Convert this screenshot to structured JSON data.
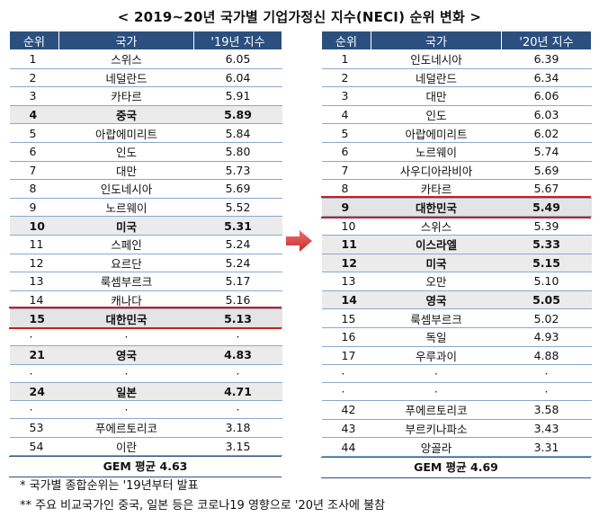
{
  "title": "< 2019~20년 국가별 기업가정신 지수(NECI) 순위 변화 >",
  "left": {
    "headers": [
      "순위",
      "국가",
      "'19년 지수"
    ],
    "rows": [
      {
        "rank": "1",
        "country": "스위스",
        "value": "6.05",
        "style": ""
      },
      {
        "rank": "2",
        "country": "네덜란드",
        "value": "6.04",
        "style": ""
      },
      {
        "rank": "3",
        "country": "카타르",
        "value": "5.91",
        "style": ""
      },
      {
        "rank": "4",
        "country": "중국",
        "value": "5.89",
        "style": "bold"
      },
      {
        "rank": "5",
        "country": "아랍에미리트",
        "value": "5.84",
        "style": ""
      },
      {
        "rank": "6",
        "country": "인도",
        "value": "5.80",
        "style": ""
      },
      {
        "rank": "7",
        "country": "대만",
        "value": "5.73",
        "style": ""
      },
      {
        "rank": "8",
        "country": "인도네시아",
        "value": "5.69",
        "style": ""
      },
      {
        "rank": "9",
        "country": "노르웨이",
        "value": "5.52",
        "style": ""
      },
      {
        "rank": "10",
        "country": "미국",
        "value": "5.31",
        "style": "bold"
      },
      {
        "rank": "11",
        "country": "스페인",
        "value": "5.24",
        "style": ""
      },
      {
        "rank": "12",
        "country": "요르단",
        "value": "5.24",
        "style": ""
      },
      {
        "rank": "13",
        "country": "룩셈부르크",
        "value": "5.17",
        "style": ""
      },
      {
        "rank": "14",
        "country": "캐나다",
        "value": "5.16",
        "style": ""
      },
      {
        "rank": "15",
        "country": "대한민국",
        "value": "5.13",
        "style": "korea"
      },
      {
        "rank": "·",
        "country": "·",
        "value": "·",
        "style": "dots"
      },
      {
        "rank": "21",
        "country": "영국",
        "value": "4.83",
        "style": "bold"
      },
      {
        "rank": "·",
        "country": "·",
        "value": "·",
        "style": "dots"
      },
      {
        "rank": "24",
        "country": "일본",
        "value": "4.71",
        "style": "bold"
      },
      {
        "rank": "·",
        "country": "·",
        "value": "·",
        "style": "dots"
      },
      {
        "rank": "53",
        "country": "푸에르토리코",
        "value": "3.18",
        "style": ""
      },
      {
        "rank": "54",
        "country": "이란",
        "value": "3.15",
        "style": ""
      }
    ],
    "gem": "GEM 평균 4.63"
  },
  "right": {
    "headers": [
      "순위",
      "국가",
      "'20년 지수"
    ],
    "rows": [
      {
        "rank": "1",
        "country": "인도네시아",
        "value": "6.39",
        "style": ""
      },
      {
        "rank": "2",
        "country": "네덜란드",
        "value": "6.34",
        "style": ""
      },
      {
        "rank": "3",
        "country": "대만",
        "value": "6.06",
        "style": ""
      },
      {
        "rank": "4",
        "country": "인도",
        "value": "6.03",
        "style": ""
      },
      {
        "rank": "5",
        "country": "아랍에미리트",
        "value": "6.02",
        "style": ""
      },
      {
        "rank": "6",
        "country": "노르웨이",
        "value": "5.74",
        "style": ""
      },
      {
        "rank": "7",
        "country": "사우디아라비아",
        "value": "5.69",
        "style": ""
      },
      {
        "rank": "8",
        "country": "카타르",
        "value": "5.67",
        "style": ""
      },
      {
        "rank": "9",
        "country": "대한민국",
        "value": "5.49",
        "style": "korea"
      },
      {
        "rank": "10",
        "country": "스위스",
        "value": "5.39",
        "style": ""
      },
      {
        "rank": "11",
        "country": "이스라엘",
        "value": "5.33",
        "style": "bold"
      },
      {
        "rank": "12",
        "country": "미국",
        "value": "5.15",
        "style": "bold"
      },
      {
        "rank": "13",
        "country": "오만",
        "value": "5.10",
        "style": ""
      },
      {
        "rank": "14",
        "country": "영국",
        "value": "5.05",
        "style": "bold"
      },
      {
        "rank": "15",
        "country": "룩셈부르크",
        "value": "5.02",
        "style": ""
      },
      {
        "rank": "16",
        "country": "독일",
        "value": "4.93",
        "style": ""
      },
      {
        "rank": "17",
        "country": "우루과이",
        "value": "4.88",
        "style": ""
      },
      {
        "rank": "·",
        "country": "·",
        "value": "·",
        "style": "dots"
      },
      {
        "rank": "·",
        "country": "·",
        "value": "·",
        "style": "dots"
      },
      {
        "rank": "42",
        "country": "푸에르토리코",
        "value": "3.58",
        "style": ""
      },
      {
        "rank": "43",
        "country": "부르키나파소",
        "value": "3.43",
        "style": ""
      },
      {
        "rank": "44",
        "country": "앙골라",
        "value": "3.31",
        "style": ""
      }
    ],
    "gem": "GEM 평균 4.69"
  },
  "notes": [
    "* 국가별 종합순위는 '19년부터 발표",
    "** 주요 비교국가인 중국, 일본 등은 코로나19 영향으로 '20년 조사에 불참"
  ],
  "colors": {
    "header": "#2b4f7e",
    "highlight_border": "#d11a1a",
    "arrow": "#d9383a"
  }
}
